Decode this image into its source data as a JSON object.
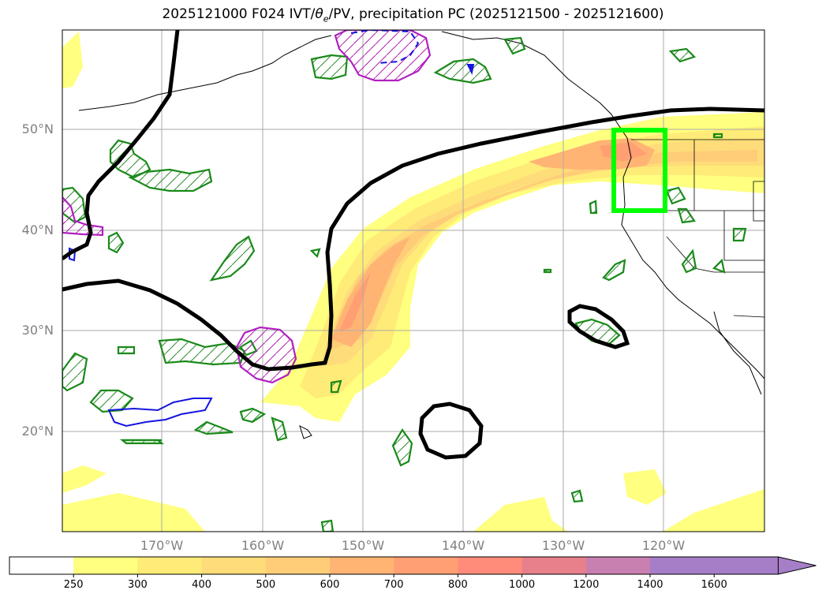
{
  "title": {
    "prefix": "2025121000 F024 IVT/",
    "theta": "θ",
    "theta_sub": "e",
    "suffix": "/PV, precipitation PC (2025121500 - 2025121600)"
  },
  "map": {
    "region": "North Pacific / western North America",
    "grid": true,
    "lat_labels": [
      "50°N",
      "40°N",
      "30°N",
      "20°N"
    ],
    "lon_labels": [
      "170°W",
      "160°W",
      "150°W",
      "140°W",
      "130°W",
      "120°W"
    ],
    "layers": [
      {
        "name": "IVT",
        "style": "filled contours",
        "colormap": "yellow-orange-red-purple"
      },
      {
        "name": "theta-e",
        "style": "green contours"
      },
      {
        "name": "PV",
        "style": "magenta / blue contours"
      },
      {
        "name": "precipitation PC",
        "style": "black contour"
      },
      {
        "name": "highlight-box",
        "style": "lime rectangle",
        "lat_range": [
          42,
          50
        ],
        "lon_range": [
          -125,
          -120
        ]
      }
    ]
  },
  "colorbar": {
    "ticks": [
      "250",
      "300",
      "400",
      "500",
      "600",
      "700",
      "800",
      "1000",
      "1200",
      "1400",
      "1600"
    ],
    "colors": [
      "#ffffff",
      "#ffff80",
      "#ffeb78",
      "#ffdc7a",
      "#ffcd78",
      "#ffb474",
      "#ff9f73",
      "#ff8c7a",
      "#e8808c",
      "#c880b0",
      "#a67ec8",
      "#a67ec8"
    ],
    "extend": "max"
  }
}
